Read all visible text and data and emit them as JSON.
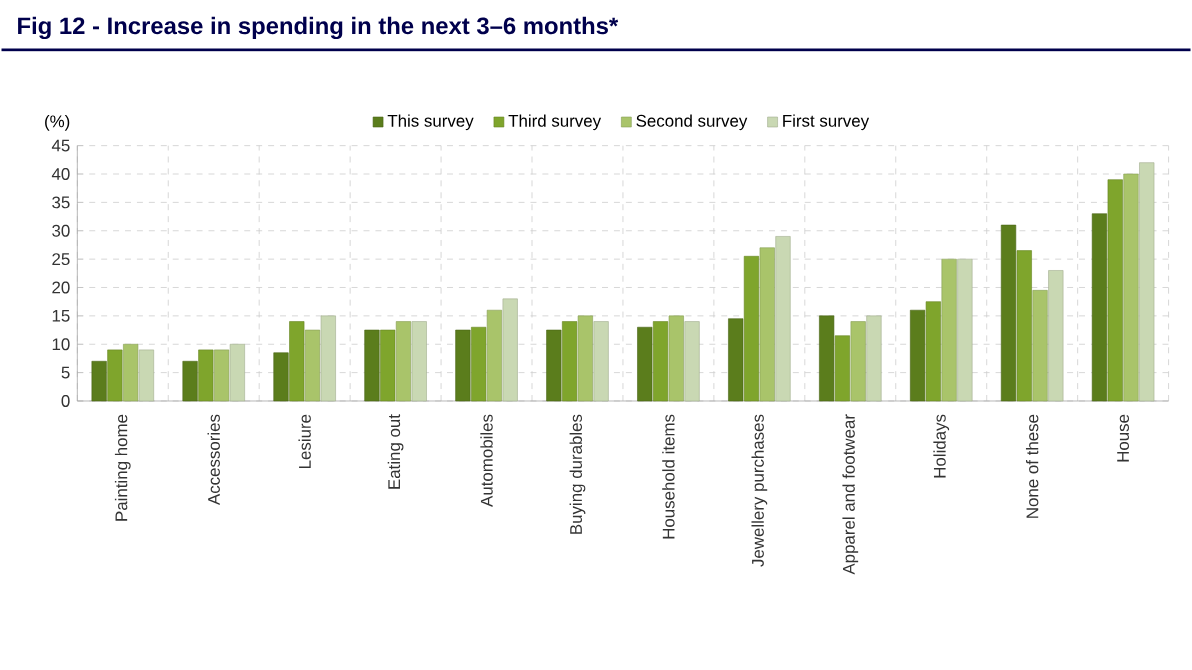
{
  "chart_data": {
    "type": "bar",
    "title": "Fig 12 - Increase in spending in the next 3–6 months*",
    "ylabel": "(%)",
    "categories": [
      "Painting home",
      "Accessories",
      "Lesiure",
      "Eating out",
      "Automobiles",
      "Buying durables",
      "Household items",
      "Jewellery purchases",
      "Apparel and footwear",
      "Holidays",
      "None of these",
      "House"
    ],
    "series": [
      {
        "name": "This survey",
        "color": "#5b7d1c",
        "values": [
          7,
          7,
          8.5,
          12.5,
          12.5,
          12.5,
          13,
          14.5,
          15,
          16,
          31,
          33
        ]
      },
      {
        "name": "Third survey",
        "color": "#7fa52c",
        "values": [
          9,
          9,
          14,
          12.5,
          13,
          14,
          14,
          25.5,
          11.5,
          17.5,
          26.5,
          39
        ]
      },
      {
        "name": "Second survey",
        "color": "#a9c46a",
        "values": [
          10,
          9,
          12.5,
          14,
          16,
          15,
          15,
          27,
          14,
          25,
          19.5,
          40
        ]
      },
      {
        "name": "First survey",
        "color": "#c9d8b3",
        "values": [
          9,
          10,
          15,
          14,
          18,
          14,
          14,
          29,
          15,
          25,
          23,
          42
        ]
      }
    ],
    "ylim": [
      0,
      45
    ],
    "yticks": [
      0,
      5,
      10,
      15,
      20,
      25,
      30,
      35,
      40,
      45
    ],
    "grid": true,
    "legend": "top"
  }
}
